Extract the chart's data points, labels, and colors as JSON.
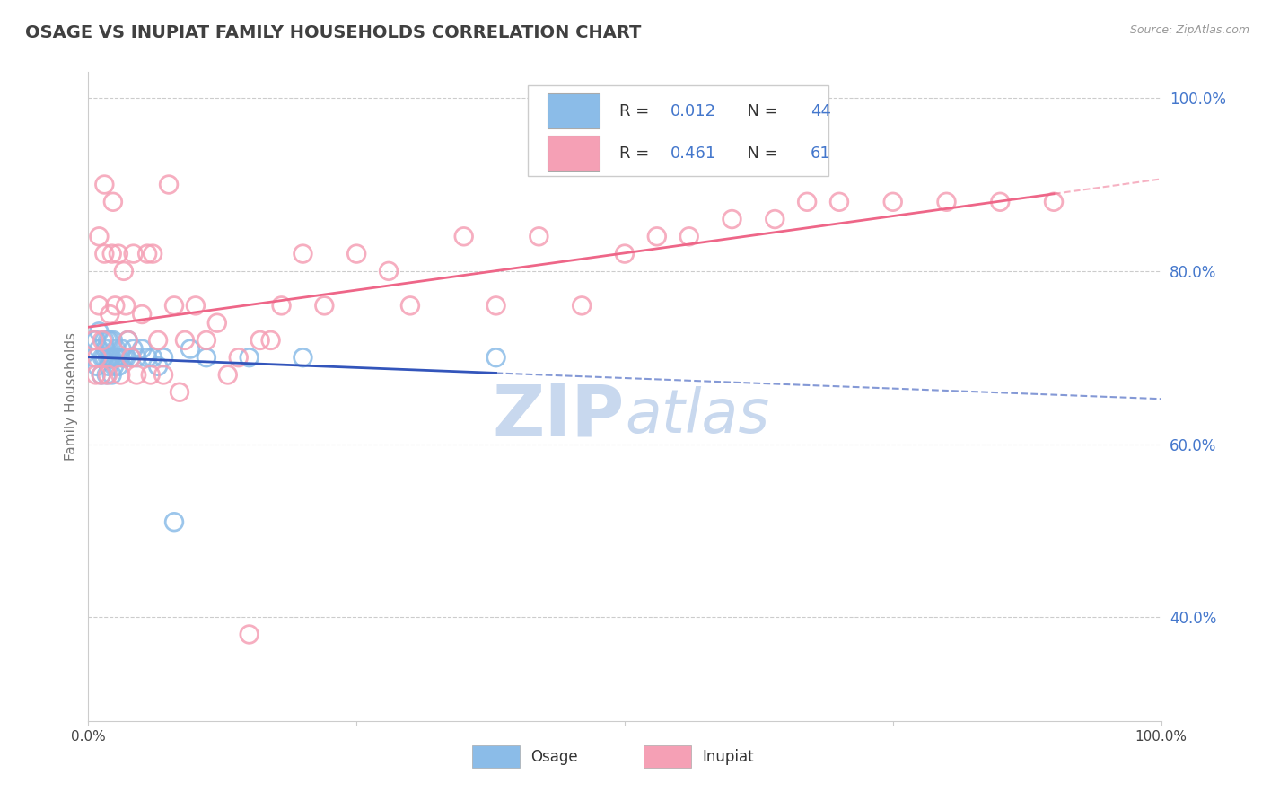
{
  "title": "OSAGE VS INUPIAT FAMILY HOUSEHOLDS CORRELATION CHART",
  "source_text": "Source: ZipAtlas.com",
  "ylabel": "Family Households",
  "xlim": [
    0.0,
    1.0
  ],
  "ylim": [
    0.28,
    1.03
  ],
  "xtick_positions": [
    0.0,
    0.25,
    0.5,
    0.75,
    1.0
  ],
  "xtick_labels": [
    "0.0%",
    "",
    "",
    "",
    "100.0%"
  ],
  "ytick_positions": [
    0.4,
    0.6,
    0.8,
    1.0
  ],
  "ytick_labels": [
    "40.0%",
    "60.0%",
    "80.0%",
    "100.0%"
  ],
  "color_osage": "#8BBCE8",
  "color_inupiat": "#F5A0B5",
  "color_line_osage": "#3355BB",
  "color_line_inupiat": "#EE6688",
  "color_grid": "#CCCCCC",
  "watermark_color": "#C8D8EE",
  "background_color": "#FFFFFF",
  "title_color": "#404040",
  "title_fontsize": 14,
  "axis_label_color": "#777777",
  "tick_color_x": "#444444",
  "tick_color_y": "#4477CC",
  "osage_x": [
    0.005,
    0.007,
    0.008,
    0.01,
    0.01,
    0.012,
    0.013,
    0.015,
    0.015,
    0.016,
    0.017,
    0.018,
    0.018,
    0.019,
    0.02,
    0.02,
    0.021,
    0.022,
    0.022,
    0.023,
    0.024,
    0.025,
    0.026,
    0.027,
    0.028,
    0.03,
    0.031,
    0.033,
    0.035,
    0.037,
    0.04,
    0.042,
    0.045,
    0.05,
    0.055,
    0.06,
    0.065,
    0.07,
    0.08,
    0.095,
    0.11,
    0.15,
    0.2,
    0.38
  ],
  "osage_y": [
    0.7,
    0.72,
    0.69,
    0.71,
    0.73,
    0.68,
    0.7,
    0.72,
    0.7,
    0.71,
    0.68,
    0.7,
    0.72,
    0.69,
    0.7,
    0.72,
    0.7,
    0.68,
    0.7,
    0.72,
    0.69,
    0.7,
    0.71,
    0.7,
    0.69,
    0.7,
    0.71,
    0.7,
    0.7,
    0.72,
    0.7,
    0.71,
    0.7,
    0.71,
    0.7,
    0.7,
    0.69,
    0.7,
    0.51,
    0.71,
    0.7,
    0.7,
    0.7,
    0.7
  ],
  "inupiat_x": [
    0.005,
    0.007,
    0.008,
    0.01,
    0.01,
    0.012,
    0.013,
    0.015,
    0.015,
    0.018,
    0.02,
    0.022,
    0.023,
    0.025,
    0.028,
    0.03,
    0.033,
    0.035,
    0.037,
    0.04,
    0.042,
    0.045,
    0.05,
    0.055,
    0.058,
    0.06,
    0.065,
    0.07,
    0.075,
    0.08,
    0.085,
    0.09,
    0.1,
    0.11,
    0.12,
    0.13,
    0.14,
    0.15,
    0.16,
    0.17,
    0.18,
    0.2,
    0.22,
    0.25,
    0.28,
    0.3,
    0.35,
    0.38,
    0.42,
    0.46,
    0.5,
    0.53,
    0.56,
    0.6,
    0.64,
    0.67,
    0.7,
    0.75,
    0.8,
    0.85,
    0.9
  ],
  "inupiat_y": [
    0.72,
    0.68,
    0.7,
    0.76,
    0.84,
    0.68,
    0.72,
    0.82,
    0.9,
    0.68,
    0.75,
    0.82,
    0.88,
    0.76,
    0.82,
    0.68,
    0.8,
    0.76,
    0.72,
    0.7,
    0.82,
    0.68,
    0.75,
    0.82,
    0.68,
    0.82,
    0.72,
    0.68,
    0.9,
    0.76,
    0.66,
    0.72,
    0.76,
    0.72,
    0.74,
    0.68,
    0.7,
    0.38,
    0.72,
    0.72,
    0.76,
    0.82,
    0.76,
    0.82,
    0.8,
    0.76,
    0.84,
    0.76,
    0.84,
    0.76,
    0.82,
    0.84,
    0.84,
    0.86,
    0.86,
    0.88,
    0.88,
    0.88,
    0.88,
    0.88,
    0.88
  ]
}
